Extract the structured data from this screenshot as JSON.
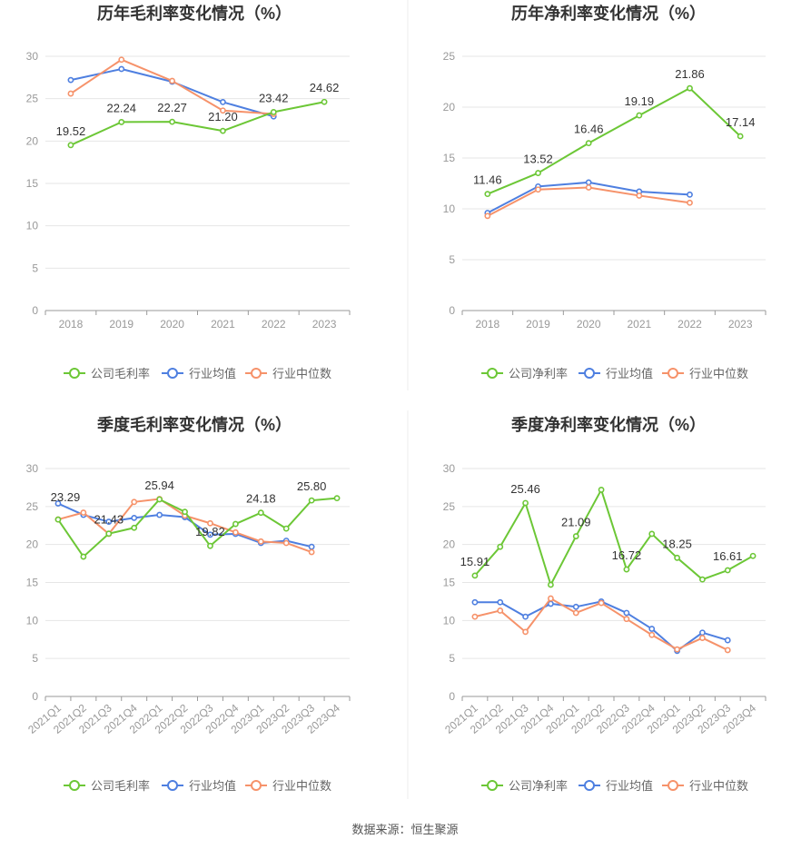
{
  "source_note": "数据来源：恒生聚源",
  "legend_labels": {
    "gross_company": "公司毛利率",
    "net_company": "公司净利率",
    "avg": "行业均值",
    "median": "行业中位数"
  },
  "colors": {
    "company": "#6cc736",
    "avg": "#4e7fe0",
    "median": "#f6926a"
  },
  "chart_data": [
    {
      "type": "line",
      "title": "历年毛利率变化情况（%）",
      "categories": [
        "2018",
        "2019",
        "2020",
        "2021",
        "2022",
        "2023"
      ],
      "ylim": [
        0,
        30
      ],
      "yticks": [
        "0",
        "5",
        "10",
        "15",
        "20",
        "25",
        "30"
      ],
      "series": [
        {
          "name": "公司毛利率",
          "values": [
            19.52,
            22.24,
            22.27,
            21.2,
            23.42,
            24.62
          ],
          "labels": [
            "19.52",
            "22.24",
            "22.27",
            "21.20",
            "23.42",
            "24.62"
          ]
        },
        {
          "name": "行业均值",
          "values": [
            27.2,
            28.5,
            27.0,
            24.6,
            22.9,
            null
          ]
        },
        {
          "name": "行业中位数",
          "values": [
            25.6,
            29.6,
            27.1,
            23.6,
            23.2,
            null
          ]
        }
      ]
    },
    {
      "type": "line",
      "title": "历年净利率变化情况（%）",
      "categories": [
        "2018",
        "2019",
        "2020",
        "2021",
        "2022",
        "2023"
      ],
      "ylim": [
        0,
        25
      ],
      "yticks": [
        "0",
        "5",
        "10",
        "15",
        "20",
        "25"
      ],
      "series": [
        {
          "name": "公司净利率",
          "values": [
            11.46,
            13.52,
            16.46,
            19.19,
            21.86,
            17.14
          ],
          "labels": [
            "11.46",
            "13.52",
            "16.46",
            "19.19",
            "21.86",
            "17.14"
          ]
        },
        {
          "name": "行业均值",
          "values": [
            9.6,
            12.2,
            12.6,
            11.7,
            11.4,
            null
          ]
        },
        {
          "name": "行业中位数",
          "values": [
            9.3,
            11.9,
            12.1,
            11.3,
            10.6,
            null
          ]
        }
      ]
    },
    {
      "type": "line",
      "title": "季度毛利率变化情况（%）",
      "categories": [
        "2021Q1",
        "2021Q2",
        "2021Q3",
        "2021Q4",
        "2022Q1",
        "2022Q2",
        "2022Q3",
        "2022Q4",
        "2023Q1",
        "2023Q2",
        "2023Q3",
        "2023Q4"
      ],
      "ylim": [
        0,
        30
      ],
      "yticks": [
        "0",
        "5",
        "10",
        "15",
        "20",
        "25",
        "30"
      ],
      "series": [
        {
          "name": "公司毛利率",
          "values": [
            23.29,
            18.4,
            21.43,
            22.2,
            25.94,
            24.3,
            19.82,
            22.7,
            24.18,
            22.1,
            25.8,
            26.1
          ],
          "labels": [
            "23.29",
            "",
            "21.43",
            "",
            "25.94",
            "",
            "19.82",
            "",
            "24.18",
            "",
            "25.80",
            ""
          ]
        },
        {
          "name": "行业均值",
          "values": [
            25.4,
            23.9,
            23.0,
            23.5,
            23.9,
            23.6,
            21.3,
            21.4,
            20.2,
            20.5,
            19.7,
            null
          ]
        },
        {
          "name": "行业中位数",
          "values": [
            23.3,
            24.2,
            21.4,
            25.6,
            26.0,
            23.8,
            22.8,
            21.6,
            20.4,
            20.2,
            19.0,
            null
          ]
        }
      ]
    },
    {
      "type": "line",
      "title": "季度净利率变化情况（%）",
      "categories": [
        "2021Q1",
        "2021Q2",
        "2021Q3",
        "2021Q4",
        "2022Q1",
        "2022Q2",
        "2022Q3",
        "2022Q4",
        "2023Q1",
        "2023Q2",
        "2023Q3",
        "2023Q4"
      ],
      "ylim": [
        0,
        30
      ],
      "yticks": [
        "0",
        "5",
        "10",
        "15",
        "20",
        "25",
        "30"
      ],
      "series": [
        {
          "name": "公司净利率",
          "values": [
            15.91,
            19.7,
            25.46,
            14.7,
            21.09,
            27.2,
            16.72,
            21.4,
            18.25,
            15.4,
            16.61,
            18.5
          ],
          "labels": [
            "15.91",
            "",
            "25.46",
            "",
            "21.09",
            "",
            "16.72",
            "",
            "18.25",
            "",
            "16.61",
            ""
          ]
        },
        {
          "name": "行业均值",
          "values": [
            12.4,
            12.4,
            10.5,
            12.2,
            11.8,
            12.5,
            11.0,
            8.9,
            6.0,
            8.4,
            7.4,
            null
          ]
        },
        {
          "name": "行业中位数",
          "values": [
            10.5,
            11.3,
            8.5,
            12.9,
            11.0,
            12.3,
            10.2,
            8.1,
            6.2,
            7.7,
            6.1,
            null
          ]
        }
      ]
    }
  ]
}
